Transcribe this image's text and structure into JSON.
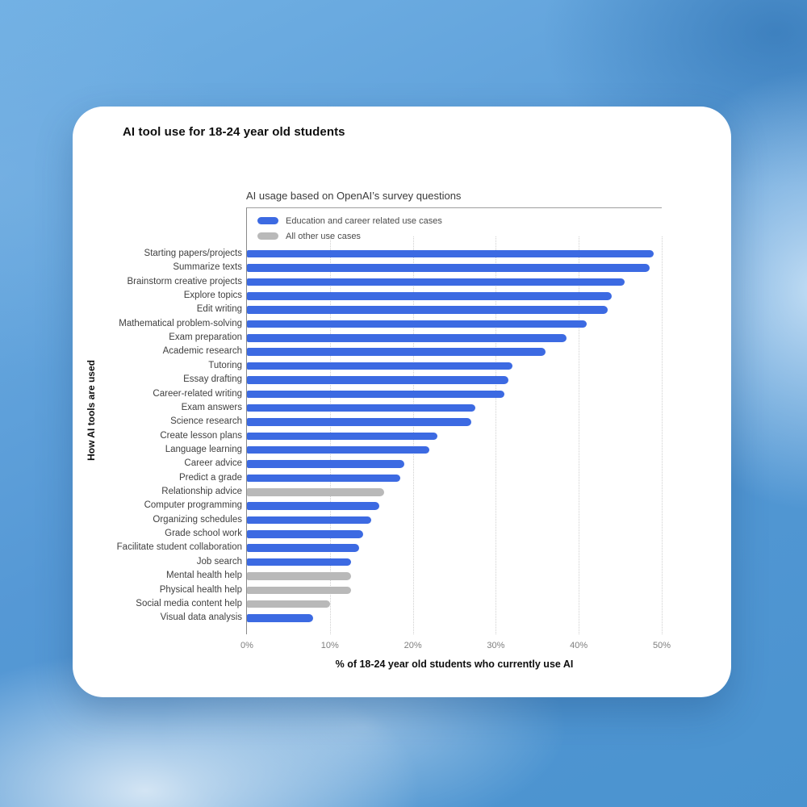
{
  "chart_data": {
    "type": "bar",
    "orientation": "horizontal",
    "title": "AI tool use for 18-24 year old students",
    "subtitle": "AI usage based on OpenAI’s survey questions",
    "xlabel": "% of 18-24 year old students who currently use AI",
    "ylabel": "How AI tools are used",
    "xlim": [
      0,
      50
    ],
    "x_ticks": [
      "0%",
      "10%",
      "20%",
      "30%",
      "40%",
      "50%"
    ],
    "x_tick_values": [
      0,
      10,
      20,
      30,
      40,
      50
    ],
    "grid": "vertical dotted gridlines",
    "legend_position": "top-left inside plot",
    "legend": [
      {
        "key": "education",
        "label": "Education and career related use cases",
        "color": "#3c6ae2"
      },
      {
        "key": "other",
        "label": "All other use cases",
        "color": "#b9b9b9"
      }
    ],
    "categories": [
      "Starting papers/projects",
      "Summarize texts",
      "Brainstorm creative projects",
      "Explore topics",
      "Edit writing",
      "Mathematical problem-solving",
      "Exam preparation",
      "Academic research",
      "Tutoring",
      "Essay drafting",
      "Career-related writing",
      "Exam answers",
      "Science research",
      "Create lesson plans",
      "Language learning",
      "Career advice",
      "Predict a grade",
      "Relationship advice",
      "Computer programming",
      "Organizing schedules",
      "Grade school work",
      "Facilitate student collaboration",
      "Job search",
      "Mental health help",
      "Physical health help",
      "Social media content help",
      "Visual data analysis"
    ],
    "values": [
      49,
      48.5,
      45.5,
      44,
      43.5,
      41,
      38.5,
      36,
      32,
      31.5,
      31,
      27.5,
      27,
      23,
      22,
      19,
      18.5,
      16.5,
      16,
      15,
      14,
      13.5,
      12.5,
      12.5,
      12.5,
      10,
      8
    ],
    "groups": [
      "education",
      "education",
      "education",
      "education",
      "education",
      "education",
      "education",
      "education",
      "education",
      "education",
      "education",
      "education",
      "education",
      "education",
      "education",
      "education",
      "education",
      "other",
      "education",
      "education",
      "education",
      "education",
      "education",
      "other",
      "other",
      "other",
      "education"
    ]
  }
}
